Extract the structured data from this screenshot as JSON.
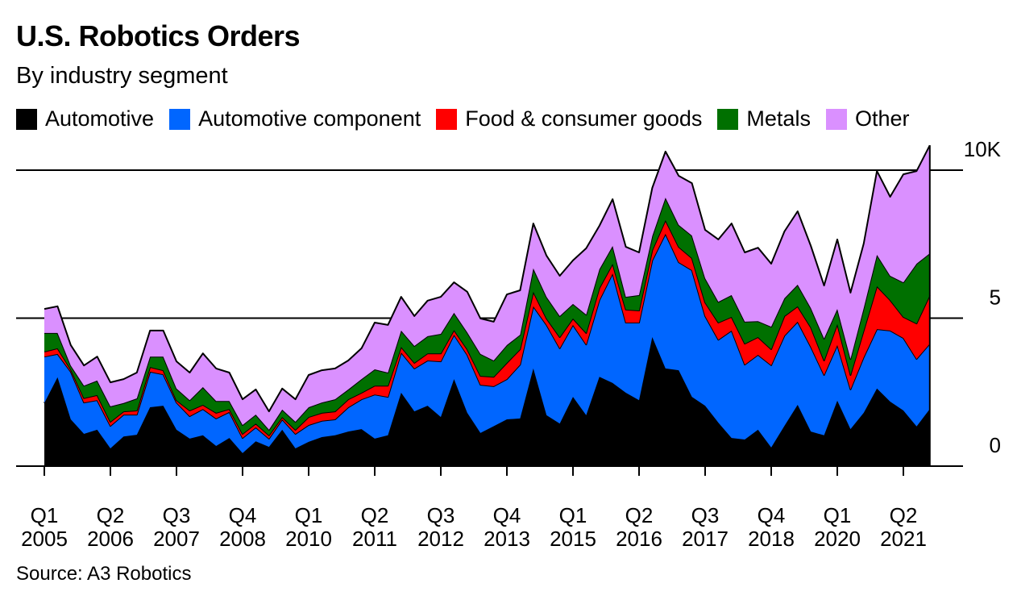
{
  "title": "U.S. Robotics Orders",
  "subtitle": "By industry segment",
  "source": "Source: A3 Robotics",
  "chart_data": {
    "type": "area",
    "stacked": true,
    "title": "U.S. Robotics Orders",
    "subtitle": "By industry segment",
    "xlabel": "",
    "ylabel": "",
    "units": "thousands of orders",
    "x_start": "Q1 2005",
    "x_end": "Q4 2021",
    "x_tick_labels": [
      [
        "Q1",
        "2005"
      ],
      [
        "Q2",
        "2006"
      ],
      [
        "Q3",
        "2007"
      ],
      [
        "Q4",
        "2008"
      ],
      [
        "Q1",
        "2010"
      ],
      [
        "Q2",
        "2011"
      ],
      [
        "Q3",
        "2012"
      ],
      [
        "Q4",
        "2013"
      ],
      [
        "Q1",
        "2015"
      ],
      [
        "Q2",
        "2016"
      ],
      [
        "Q3",
        "2017"
      ],
      [
        "Q4",
        "2018"
      ],
      [
        "Q1",
        "2020"
      ],
      [
        "Q2",
        "2021"
      ]
    ],
    "y_ticks": [
      {
        "value": 0,
        "label": "0"
      },
      {
        "value": 5,
        "label": "5"
      },
      {
        "value": 10,
        "label": "10K"
      }
    ],
    "ylim": [
      0,
      11
    ],
    "grid": true,
    "legend_position": "top-left",
    "series": [
      {
        "name": "Automotive",
        "color": "#000000",
        "values": [
          2.13,
          3.0,
          1.58,
          1.09,
          1.23,
          0.6,
          1.0,
          1.06,
          1.99,
          2.04,
          1.23,
          0.93,
          1.04,
          0.68,
          0.95,
          0.44,
          0.84,
          0.65,
          1.23,
          0.6,
          0.82,
          0.98,
          1.04,
          1.17,
          1.25,
          0.93,
          1.04,
          2.48,
          1.85,
          2.04,
          1.66,
          2.94,
          1.8,
          1.12,
          1.35,
          1.58,
          1.61,
          3.3,
          1.72,
          1.44,
          2.34,
          1.72,
          3.02,
          2.81,
          2.48,
          2.23,
          4.36,
          3.3,
          3.24,
          2.34,
          2.04,
          1.47,
          0.95,
          0.9,
          1.23,
          0.63,
          1.36,
          2.07,
          1.17,
          1.04,
          2.21,
          1.25,
          1.8,
          2.62,
          2.18,
          1.88,
          1.34,
          1.93
        ]
      },
      {
        "name": "Automotive component",
        "color": "#0066ff",
        "values": [
          1.57,
          0.79,
          1.61,
          1.06,
          1.0,
          0.76,
          0.74,
          0.68,
          1.2,
          1.06,
          0.92,
          0.76,
          0.89,
          0.93,
          0.88,
          0.51,
          0.47,
          0.28,
          0.35,
          0.49,
          0.57,
          0.55,
          0.54,
          0.82,
          1.01,
          1.49,
          1.3,
          1.36,
          1.45,
          1.53,
          1.88,
          1.5,
          1.96,
          1.63,
          1.35,
          1.36,
          1.82,
          2.1,
          3.05,
          2.54,
          2.43,
          2.39,
          2.59,
          3.7,
          2.37,
          2.62,
          2.59,
          4.55,
          3.65,
          4.28,
          3.03,
          2.8,
          3.63,
          2.53,
          2.53,
          2.78,
          3.05,
          2.81,
          2.86,
          2.04,
          1.88,
          1.34,
          1.88,
          2.01,
          2.4,
          2.45,
          2.28,
          2.21
        ]
      },
      {
        "name": "Food & consumer goods",
        "color": "#ff0000",
        "values": [
          0.17,
          0.19,
          0.08,
          0.15,
          0.17,
          0.14,
          0.11,
          0.14,
          0.16,
          0.14,
          0.08,
          0.19,
          0.14,
          0.19,
          0.1,
          0.14,
          0.13,
          0.11,
          0.08,
          0.14,
          0.27,
          0.27,
          0.27,
          0.27,
          0.22,
          0.3,
          0.38,
          0.19,
          0.19,
          0.24,
          0.27,
          0.16,
          0.19,
          0.3,
          0.32,
          0.55,
          0.52,
          0.49,
          0.22,
          0.38,
          0.22,
          0.39,
          0.41,
          0.33,
          0.44,
          0.41,
          0.35,
          0.46,
          0.52,
          0.41,
          0.46,
          0.58,
          0.46,
          0.71,
          0.6,
          0.54,
          0.66,
          0.52,
          0.66,
          0.49,
          0.71,
          0.49,
          0.9,
          1.45,
          1.03,
          0.71,
          1.2,
          1.64
        ]
      },
      {
        "name": "Metals",
        "color": "#007000",
        "values": [
          0.63,
          0.52,
          0.13,
          0.42,
          0.49,
          0.52,
          0.28,
          0.41,
          0.35,
          0.46,
          0.39,
          0.35,
          0.6,
          0.4,
          0.27,
          0.3,
          0.3,
          0.19,
          0.25,
          0.27,
          0.33,
          0.35,
          0.41,
          0.33,
          0.46,
          0.55,
          0.44,
          0.55,
          0.57,
          0.58,
          0.66,
          0.58,
          0.57,
          0.74,
          0.55,
          0.6,
          0.49,
          0.79,
          0.73,
          0.71,
          0.49,
          0.62,
          0.63,
          0.6,
          0.43,
          0.52,
          0.47,
          0.76,
          0.74,
          0.76,
          0.82,
          0.7,
          0.74,
          0.74,
          0.54,
          0.76,
          0.6,
          0.73,
          0.65,
          0.74,
          0.51,
          0.54,
          0.76,
          1.06,
          0.82,
          1.17,
          2.02,
          1.41
        ]
      },
      {
        "name": "Other",
        "color": "#da90ff",
        "values": [
          0.81,
          0.9,
          0.69,
          0.68,
          0.81,
          0.81,
          0.81,
          0.87,
          0.88,
          0.88,
          0.92,
          0.93,
          1.14,
          1.1,
          0.96,
          0.87,
          0.85,
          0.62,
          0.71,
          0.76,
          1.09,
          1.09,
          1.04,
          0.98,
          1.04,
          1.58,
          1.61,
          1.14,
          1.01,
          1.2,
          1.25,
          1.03,
          1.37,
          1.2,
          1.31,
          1.71,
          1.5,
          1.52,
          1.39,
          1.36,
          1.47,
          2.24,
          1.47,
          1.58,
          1.69,
          1.44,
          1.63,
          1.56,
          1.66,
          1.77,
          1.63,
          2.11,
          2.42,
          2.34,
          2.48,
          2.13,
          2.26,
          2.48,
          2.1,
          1.79,
          2.35,
          2.24,
          2.18,
          2.83,
          2.67,
          3.65,
          3.13,
          3.65
        ]
      }
    ]
  }
}
